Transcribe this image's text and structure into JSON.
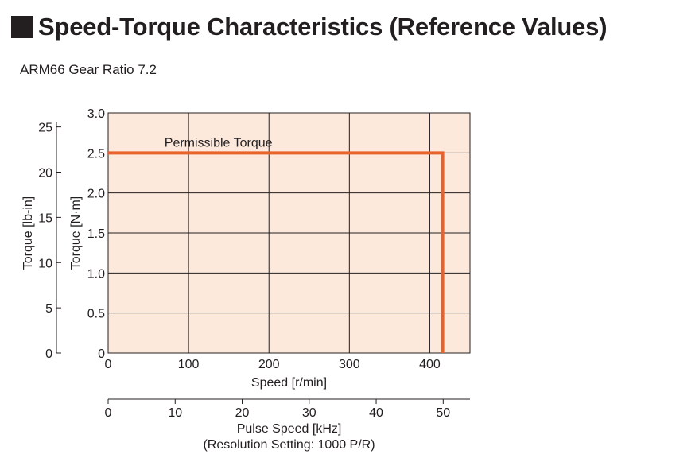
{
  "title": "Speed-Torque Characteristics (Reference Values)",
  "subtitle": "ARM66 Gear Ratio 7.2",
  "colors": {
    "plot_bg": "#fde9dc",
    "curve": "#e8632b",
    "grid": "#231f20"
  },
  "chart_data": {
    "type": "line",
    "xlabel": "Speed [r/min]",
    "x_ticks": [
      "0",
      "100",
      "200",
      "300",
      "400"
    ],
    "xlim": [
      0,
      450
    ],
    "ylabel": "Torque [N·m]",
    "y_ticks": [
      "0",
      "0.5",
      "1.0",
      "1.5",
      "2.0",
      "2.5",
      "3.0"
    ],
    "ylim": [
      0,
      3.0
    ],
    "secondary_ylabel": "Torque [lb-in]",
    "secondary_y_ticks": [
      "0",
      "5",
      "10",
      "15",
      "20",
      "25"
    ],
    "secondary_ylim": [
      0,
      26.55
    ],
    "secondary_xlabel": "Pulse Speed [kHz]",
    "secondary_xlabel_note": "(Resolution Setting: 1000 P/R)",
    "secondary_x_ticks": [
      "0",
      "10",
      "20",
      "30",
      "40",
      "50"
    ],
    "secondary_xlim": [
      0,
      54
    ],
    "grid": true,
    "series": [
      {
        "name": "Permissible Torque",
        "x": [
          0,
          416,
          416
        ],
        "y": [
          2.5,
          2.5,
          0
        ]
      }
    ],
    "annotation": "Permissible Torque"
  }
}
